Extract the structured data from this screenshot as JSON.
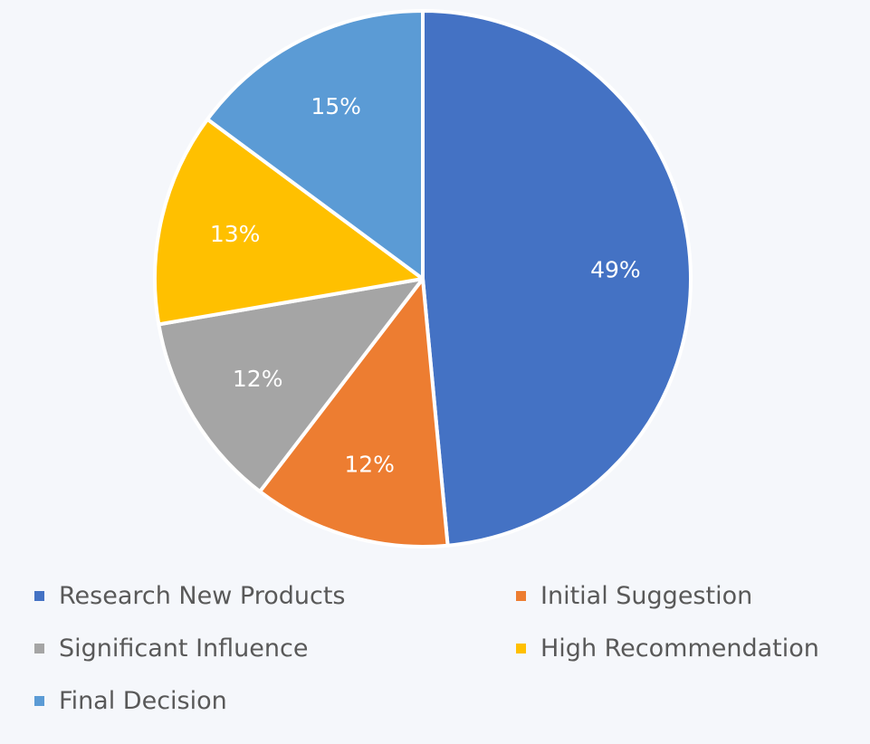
{
  "chart_data": {
    "type": "pie",
    "series": [
      {
        "name": "Research New Products",
        "value": 49,
        "label": "49%",
        "color": "#4472C4"
      },
      {
        "name": "Initial Suggestion",
        "value": 12,
        "label": "12%",
        "color": "#ED7D31"
      },
      {
        "name": "Significant Influence",
        "value": 12,
        "label": "12%",
        "color": "#A5A5A5"
      },
      {
        "name": "High Recommendation",
        "value": 13,
        "label": "13%",
        "color": "#FFC000"
      },
      {
        "name": "Final Decision",
        "value": 15,
        "label": "15%",
        "color": "#5B9BD5"
      }
    ],
    "legend_position": "bottom",
    "start_angle_deg": 0,
    "direction": "clockwise"
  }
}
